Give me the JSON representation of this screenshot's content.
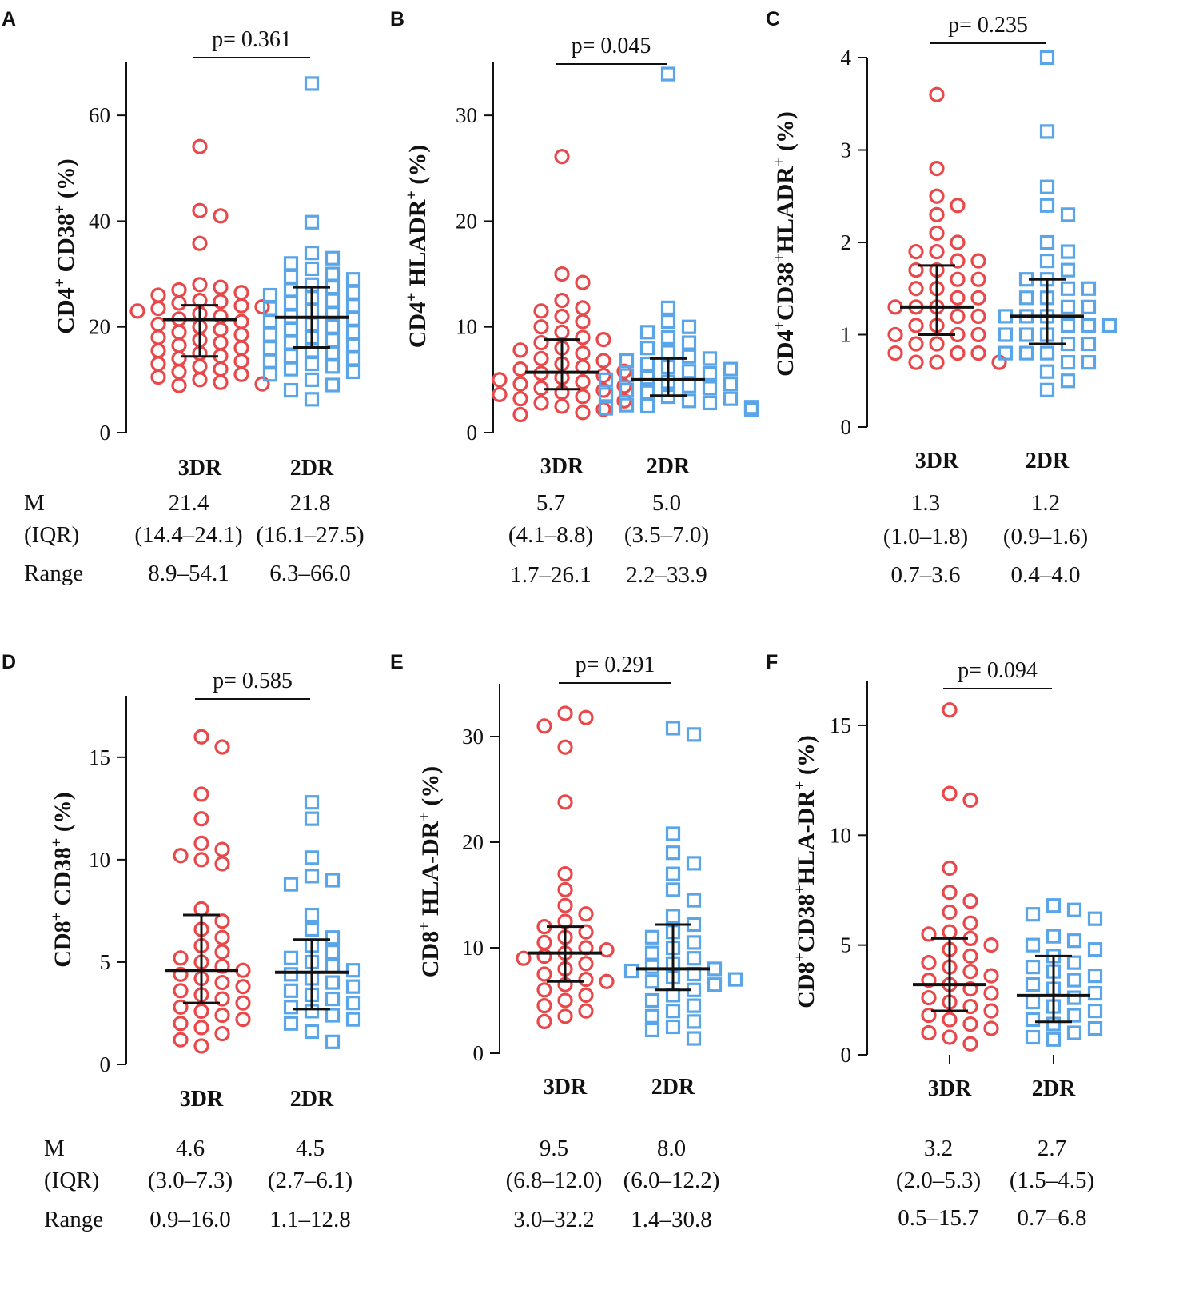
{
  "figure": {
    "stat_row_labels": [
      "M",
      "(IQR)",
      "Range"
    ],
    "colors": {
      "group1": "#e8484a",
      "group2": "#5aa5e8",
      "axis": "#111111"
    }
  },
  "chart_data": [
    {
      "panel": "A",
      "type": "scatter",
      "ylabel_main": "CD4",
      "ylabel_sup1": "+",
      "ylabel_mid": " CD38",
      "ylabel_sup2": "+",
      "ylabel_tail": " (%)",
      "categories": [
        "3DR",
        "2DR"
      ],
      "yticks": [
        0,
        20,
        40,
        60
      ],
      "ylim": [
        0,
        70
      ],
      "p_value": "p= 0.361",
      "stats_rows": {
        "median": [
          "21.4",
          "21.8"
        ],
        "iqr": [
          "(14.4–24.1)",
          "(16.1–27.5)"
        ],
        "range": [
          "8.9–54.1",
          "6.3–66.0"
        ]
      },
      "show_row_labels": true,
      "series": [
        {
          "name": "3DR",
          "marker": "circle",
          "median": 21.4,
          "q1": 14.4,
          "q3": 24.1,
          "values": [
            54.1,
            42.0,
            41.0,
            35.8,
            28.0,
            27.5,
            27.0,
            26.5,
            26.0,
            25.0,
            24.8,
            24.5,
            24.0,
            23.8,
            23.5,
            23.0,
            22.5,
            22.0,
            21.5,
            21.0,
            20.5,
            20.0,
            19.5,
            19.0,
            18.5,
            18.0,
            17.5,
            17.0,
            16.5,
            16.0,
            15.5,
            15.0,
            14.5,
            14.0,
            13.5,
            13.0,
            12.5,
            12.0,
            11.5,
            11.0,
            10.5,
            10.0,
            9.5,
            9.2,
            8.9
          ]
        },
        {
          "name": "2DR",
          "marker": "square",
          "median": 21.8,
          "q1": 16.1,
          "q3": 27.5,
          "values": [
            66.0,
            39.8,
            34.0,
            33.0,
            32.0,
            31.0,
            30.0,
            29.5,
            29.0,
            28.0,
            27.5,
            27.0,
            26.5,
            26.0,
            25.5,
            25.0,
            24.5,
            24.0,
            23.5,
            23.0,
            22.5,
            22.0,
            21.5,
            21.0,
            20.5,
            20.0,
            19.5,
            19.0,
            18.5,
            18.0,
            17.5,
            17.0,
            16.5,
            16.0,
            15.5,
            15.0,
            14.5,
            14.0,
            13.5,
            13.0,
            12.5,
            12.0,
            11.5,
            11.0,
            10.0,
            9.0,
            8.0,
            6.3
          ]
        }
      ]
    },
    {
      "panel": "B",
      "type": "scatter",
      "ylabel_main": "CD4",
      "ylabel_sup1": "+",
      "ylabel_mid": " HLADR",
      "ylabel_sup2": "+",
      "ylabel_tail": " (%)",
      "categories": [
        "3DR",
        "2DR"
      ],
      "yticks": [
        0,
        10,
        20,
        30
      ],
      "ylim": [
        0,
        35
      ],
      "p_value": "p= 0.045",
      "stats_rows": {
        "median": [
          "5.7",
          "5.0"
        ],
        "iqr": [
          "(4.1–8.8)",
          "(3.5–7.0)"
        ],
        "range": [
          "1.7–26.1",
          "2.2–33.9"
        ]
      },
      "show_row_labels": false,
      "series": [
        {
          "name": "3DR",
          "marker": "circle",
          "median": 5.7,
          "q1": 4.1,
          "q3": 8.8,
          "values": [
            26.1,
            15.0,
            14.2,
            12.5,
            11.8,
            11.5,
            11.0,
            10.5,
            10.0,
            9.5,
            9.0,
            8.8,
            8.5,
            8.0,
            7.8,
            7.5,
            7.0,
            6.8,
            6.5,
            6.2,
            6.0,
            5.8,
            5.6,
            5.4,
            5.2,
            5.0,
            4.8,
            4.6,
            4.4,
            4.2,
            4.0,
            3.8,
            3.6,
            3.4,
            3.2,
            3.0,
            2.8,
            2.5,
            2.2,
            1.9,
            1.7
          ]
        },
        {
          "name": "2DR",
          "marker": "square",
          "median": 5.0,
          "q1": 3.5,
          "q3": 7.0,
          "values": [
            33.9,
            11.8,
            10.5,
            10.0,
            9.5,
            9.0,
            8.5,
            8.0,
            7.6,
            7.2,
            7.0,
            6.8,
            6.5,
            6.2,
            6.0,
            5.8,
            5.6,
            5.4,
            5.2,
            5.0,
            4.8,
            4.6,
            4.4,
            4.2,
            4.0,
            3.8,
            3.6,
            3.4,
            3.2,
            3.0,
            2.8,
            2.6,
            2.5,
            2.4,
            2.3,
            2.2
          ]
        }
      ]
    },
    {
      "panel": "C",
      "type": "scatter",
      "ylabel_main": "CD4",
      "ylabel_sup1": "+",
      "ylabel_mid": "CD38",
      "ylabel_sup2": "+",
      "ylabel_tail": "HLADR",
      "ylabel_sup3": "+",
      "ylabel_end": " (%)",
      "categories": [
        "3DR",
        "2DR"
      ],
      "yticks": [
        0,
        1,
        2,
        3,
        4
      ],
      "ylim": [
        0,
        4
      ],
      "p_value": "p= 0.235",
      "stats_rows": {
        "median": [
          "1.3",
          "1.2"
        ],
        "iqr": [
          "(1.0–1.8)",
          "(0.9–1.6)"
        ],
        "range": [
          "0.7–3.6",
          "0.4–4.0"
        ]
      },
      "show_row_labels": false,
      "series": [
        {
          "name": "3DR",
          "marker": "circle",
          "median": 1.3,
          "q1": 1.0,
          "q3": 1.75,
          "values": [
            3.6,
            2.8,
            2.5,
            2.4,
            2.3,
            2.1,
            2.0,
            1.9,
            1.9,
            1.8,
            1.8,
            1.7,
            1.7,
            1.6,
            1.6,
            1.5,
            1.5,
            1.4,
            1.4,
            1.3,
            1.3,
            1.3,
            1.2,
            1.2,
            1.1,
            1.1,
            1.0,
            1.0,
            1.0,
            0.9,
            0.9,
            0.8,
            0.8,
            0.8,
            0.7,
            0.7,
            0.7
          ]
        },
        {
          "name": "2DR",
          "marker": "square",
          "median": 1.2,
          "q1": 0.9,
          "q3": 1.6,
          "values": [
            4.0,
            3.2,
            2.6,
            2.4,
            2.3,
            2.0,
            1.9,
            1.8,
            1.7,
            1.6,
            1.6,
            1.5,
            1.5,
            1.4,
            1.4,
            1.3,
            1.3,
            1.2,
            1.2,
            1.2,
            1.1,
            1.1,
            1.1,
            1.0,
            1.0,
            1.0,
            0.9,
            0.9,
            0.8,
            0.8,
            0.8,
            0.7,
            0.7,
            0.6,
            0.5,
            0.4
          ]
        }
      ]
    },
    {
      "panel": "D",
      "type": "scatter",
      "ylabel_main": "CD8",
      "ylabel_sup1": "+",
      "ylabel_mid": " CD38",
      "ylabel_sup2": "+",
      "ylabel_tail": " (%)",
      "categories": [
        "3DR",
        "2DR"
      ],
      "yticks": [
        0,
        5,
        10,
        15
      ],
      "ylim": [
        0,
        18
      ],
      "p_value": "p= 0.585",
      "stats_rows": {
        "median": [
          "4.6",
          "4.5"
        ],
        "iqr": [
          "(3.0–7.3)",
          "(2.7–6.1)"
        ],
        "range": [
          "0.9–16.0",
          "1.1–12.8"
        ]
      },
      "show_row_labels": true,
      "series": [
        {
          "name": "3DR",
          "marker": "circle",
          "median": 4.6,
          "q1": 3.0,
          "q3": 7.3,
          "values": [
            16.0,
            15.5,
            13.2,
            12.0,
            10.8,
            10.5,
            10.2,
            10.0,
            9.8,
            7.6,
            7.0,
            6.6,
            6.2,
            5.8,
            5.5,
            5.2,
            5.0,
            4.8,
            4.6,
            4.4,
            4.2,
            4.0,
            3.8,
            3.6,
            3.4,
            3.2,
            3.0,
            2.8,
            2.6,
            2.4,
            2.2,
            2.0,
            1.8,
            1.5,
            1.2,
            0.9
          ]
        },
        {
          "name": "2DR",
          "marker": "square",
          "median": 4.5,
          "q1": 2.7,
          "q3": 6.1,
          "values": [
            12.8,
            12.0,
            10.1,
            9.2,
            9.0,
            8.8,
            7.3,
            6.6,
            6.2,
            5.8,
            5.5,
            5.2,
            5.0,
            4.8,
            4.6,
            4.4,
            4.2,
            4.0,
            3.8,
            3.6,
            3.4,
            3.2,
            3.0,
            2.8,
            2.6,
            2.4,
            2.2,
            2.0,
            1.6,
            1.1
          ]
        }
      ]
    },
    {
      "panel": "E",
      "type": "scatter",
      "ylabel_main": "CD8",
      "ylabel_sup1": "+",
      "ylabel_mid": " HLA-DR",
      "ylabel_sup2": "+",
      "ylabel_tail": " (%)",
      "categories": [
        "3DR",
        "2DR"
      ],
      "yticks": [
        0,
        10,
        20,
        30
      ],
      "ylim": [
        0,
        35
      ],
      "p_value": "p= 0.291",
      "stats_rows": {
        "median": [
          "9.5",
          "8.0"
        ],
        "iqr": [
          "(6.8–12.0)",
          "(6.0–12.2)"
        ],
        "range": [
          "3.0–32.2",
          "1.4–30.8"
        ]
      },
      "show_row_labels": false,
      "series": [
        {
          "name": "3DR",
          "marker": "circle",
          "median": 9.5,
          "q1": 6.8,
          "q3": 12.0,
          "values": [
            32.2,
            31.8,
            31.0,
            29.0,
            23.8,
            17.0,
            15.5,
            14.0,
            13.2,
            12.5,
            12.0,
            11.5,
            11.0,
            10.5,
            10.0,
            9.8,
            9.5,
            9.2,
            9.0,
            8.5,
            8.0,
            7.5,
            7.0,
            6.8,
            6.5,
            6.0,
            5.5,
            5.0,
            4.5,
            4.0,
            3.5,
            3.0
          ]
        },
        {
          "name": "2DR",
          "marker": "square",
          "median": 8.0,
          "q1": 6.0,
          "q3": 12.2,
          "values": [
            30.8,
            30.2,
            20.8,
            19.0,
            18.0,
            17.0,
            15.5,
            14.5,
            13.0,
            12.2,
            11.5,
            11.0,
            10.5,
            10.0,
            9.5,
            9.0,
            8.5,
            8.2,
            8.0,
            7.8,
            7.5,
            7.2,
            7.0,
            6.8,
            6.5,
            6.0,
            5.5,
            5.0,
            4.5,
            4.0,
            3.5,
            3.0,
            2.5,
            2.2,
            1.4
          ]
        }
      ]
    },
    {
      "panel": "F",
      "type": "scatter",
      "ylabel_main": "CD8",
      "ylabel_sup1": "+",
      "ylabel_mid": "CD38",
      "ylabel_sup2": "+",
      "ylabel_tail": "HLA-DR",
      "ylabel_sup3": "+",
      "ylabel_end": " (%)",
      "categories": [
        "3DR",
        "2DR"
      ],
      "yticks": [
        0,
        5,
        10,
        15
      ],
      "ylim": [
        0,
        17
      ],
      "p_value": "p= 0.094",
      "stats_rows": {
        "median": [
          "3.2",
          "2.7"
        ],
        "iqr": [
          "(2.0–5.3)",
          "(1.5–4.5)"
        ],
        "range": [
          "0.5–15.7",
          "0.7–6.8"
        ]
      },
      "show_row_labels": false,
      "series": [
        {
          "name": "3DR",
          "marker": "circle",
          "median": 3.2,
          "q1": 2.0,
          "q3": 5.3,
          "values": [
            15.7,
            11.9,
            11.6,
            8.5,
            7.4,
            7.0,
            6.5,
            6.0,
            5.6,
            5.5,
            5.3,
            5.0,
            4.8,
            4.5,
            4.2,
            4.0,
            3.8,
            3.6,
            3.4,
            3.2,
            3.0,
            2.8,
            2.6,
            2.4,
            2.2,
            2.0,
            1.8,
            1.6,
            1.4,
            1.2,
            1.0,
            0.8,
            0.5
          ]
        },
        {
          "name": "2DR",
          "marker": "square",
          "median": 2.7,
          "q1": 1.5,
          "q3": 4.5,
          "values": [
            6.8,
            6.6,
            6.4,
            6.2,
            5.4,
            5.2,
            5.0,
            4.8,
            4.5,
            4.2,
            4.0,
            3.8,
            3.6,
            3.4,
            3.2,
            3.0,
            2.8,
            2.6,
            2.4,
            2.2,
            2.0,
            1.8,
            1.6,
            1.4,
            1.2,
            1.0,
            0.8,
            0.7
          ]
        }
      ]
    }
  ]
}
